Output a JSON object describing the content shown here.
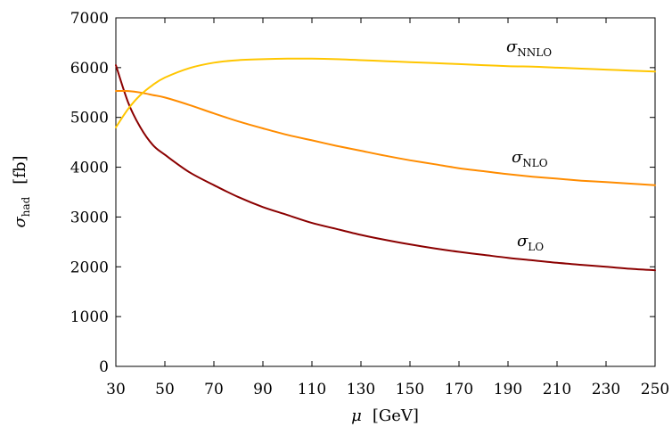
{
  "chart_data": {
    "type": "line",
    "title": "",
    "xlabel": {
      "symbol": "μ",
      "unit": "[GeV]"
    },
    "ylabel": {
      "symbol": "σ",
      "subscript": "had",
      "unit": "[fb]"
    },
    "xlim": [
      30,
      250
    ],
    "ylim": [
      0,
      7000
    ],
    "x_ticks": [
      30,
      50,
      70,
      90,
      110,
      130,
      150,
      170,
      190,
      210,
      230,
      250
    ],
    "y_ticks": [
      0,
      1000,
      2000,
      3000,
      4000,
      5000,
      6000,
      7000
    ],
    "grid": false,
    "x": [
      30,
      35,
      40,
      45,
      50,
      60,
      70,
      80,
      90,
      100,
      110,
      120,
      130,
      140,
      150,
      160,
      170,
      180,
      190,
      200,
      210,
      220,
      230,
      240,
      250
    ],
    "series": [
      {
        "name": "σ_LO",
        "label": {
          "symbol": "σ",
          "subscript": "LO"
        },
        "color": "#8b0000",
        "values": [
          6050,
          5300,
          4800,
          4450,
          4250,
          3900,
          3640,
          3400,
          3200,
          3040,
          2880,
          2760,
          2640,
          2540,
          2450,
          2370,
          2300,
          2240,
          2180,
          2130,
          2080,
          2040,
          2000,
          1960,
          1930
        ]
      },
      {
        "name": "σ_NLO",
        "label": {
          "symbol": "σ",
          "subscript": "NLO"
        },
        "color": "#ff8c00",
        "values": [
          5530,
          5530,
          5500,
          5450,
          5400,
          5250,
          5080,
          4920,
          4780,
          4650,
          4540,
          4430,
          4330,
          4230,
          4140,
          4060,
          3980,
          3920,
          3860,
          3810,
          3770,
          3730,
          3700,
          3670,
          3640
        ]
      },
      {
        "name": "σ_NNLO",
        "label": {
          "symbol": "σ",
          "subscript": "NNLO"
        },
        "color": "#ffc600",
        "values": [
          4800,
          5170,
          5450,
          5650,
          5800,
          5990,
          6100,
          6150,
          6170,
          6180,
          6180,
          6170,
          6150,
          6130,
          6110,
          6090,
          6070,
          6050,
          6030,
          6020,
          6000,
          5980,
          5960,
          5940,
          5920
        ]
      }
    ]
  }
}
